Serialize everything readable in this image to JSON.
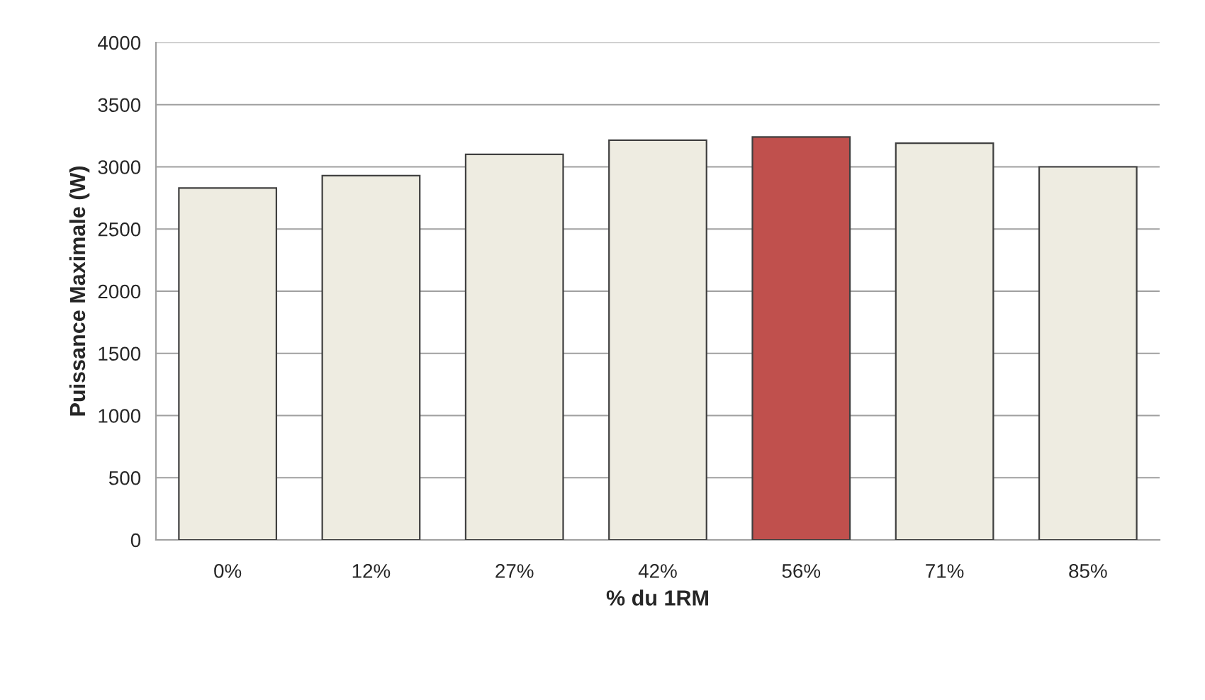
{
  "chart_data": {
    "type": "bar",
    "xlabel": "% du 1RM",
    "ylabel": "Puissance Maximale (W)",
    "categories": [
      "0%",
      "12%",
      "27%",
      "42%",
      "56%",
      "71%",
      "85%"
    ],
    "values": [
      2830,
      2930,
      3100,
      3215,
      3240,
      3190,
      3000
    ],
    "colors": [
      "#eeece1",
      "#eeece1",
      "#eeece1",
      "#eeece1",
      "#c0504d",
      "#eeece1",
      "#eeece1"
    ],
    "ylim": [
      0,
      4000
    ],
    "yticks": [
      0,
      500,
      1000,
      1500,
      2000,
      2500,
      3000,
      3500,
      4000
    ],
    "grid": "y"
  }
}
